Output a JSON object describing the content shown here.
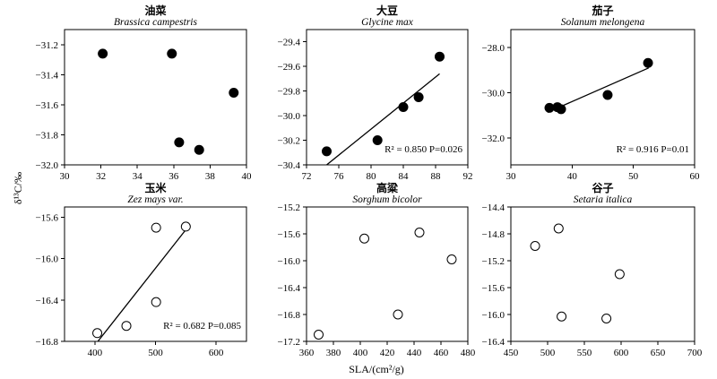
{
  "shared": {
    "xlabel": "SLA/(cm²/g)",
    "ylabel": "δ¹³C/‰"
  },
  "chart_data": [
    {
      "type": "scatter",
      "title": "油菜",
      "subtitle": "Brassica campestris",
      "filled": true,
      "xlim": [
        30,
        40
      ],
      "xticks": [
        30,
        32,
        34,
        36,
        38,
        40
      ],
      "ylim": [
        -32.0,
        -31.1
      ],
      "yticks": [
        -32.0,
        -31.8,
        -31.6,
        -31.4,
        -31.2
      ],
      "ydecimals": 1,
      "points": [
        [
          32.1,
          -31.26
        ],
        [
          35.9,
          -31.26
        ],
        [
          39.3,
          -31.52
        ],
        [
          36.3,
          -31.85
        ],
        [
          37.4,
          -31.9
        ]
      ],
      "fit": null,
      "annotation": ""
    },
    {
      "type": "scatter",
      "title": "大豆",
      "subtitle": "Glycine max",
      "filled": true,
      "xlim": [
        72,
        92
      ],
      "xticks": [
        72,
        76,
        80,
        84,
        88,
        92
      ],
      "ylim": [
        -30.4,
        -29.3
      ],
      "yticks": [
        -30.4,
        -30.2,
        -30.0,
        -29.8,
        -29.6,
        -29.4
      ],
      "ydecimals": 1,
      "points": [
        [
          74.5,
          -30.29
        ],
        [
          80.8,
          -30.2
        ],
        [
          84.0,
          -29.93
        ],
        [
          85.9,
          -29.85
        ],
        [
          88.5,
          -29.52
        ]
      ],
      "fit": [
        [
          74.5,
          -30.4
        ],
        [
          88.5,
          -29.66
        ]
      ],
      "annotation": "R² = 0.850  P=0.026"
    },
    {
      "type": "scatter",
      "title": "茄子",
      "subtitle": "Solanum melongena",
      "filled": true,
      "xlim": [
        30,
        60
      ],
      "xticks": [
        30,
        40,
        50,
        60
      ],
      "ylim": [
        -33.2,
        -27.2
      ],
      "yticks": [
        -32.0,
        -30.0,
        -28.0
      ],
      "ydecimals": 1,
      "points": [
        [
          36.3,
          -30.67
        ],
        [
          37.6,
          -30.64
        ],
        [
          38.2,
          -30.73
        ],
        [
          45.8,
          -30.1
        ],
        [
          52.4,
          -28.68
        ]
      ],
      "fit": [
        [
          36.0,
          -30.87
        ],
        [
          52.5,
          -28.9
        ]
      ],
      "annotation": "R² = 0.916  P=0.01"
    },
    {
      "type": "scatter",
      "title": "玉米",
      "subtitle": "Zez mays var.",
      "filled": false,
      "xlim": [
        350,
        650
      ],
      "xticks": [
        400,
        500,
        600
      ],
      "ylim": [
        -16.8,
        -15.5
      ],
      "yticks": [
        -16.8,
        -16.4,
        -16.0,
        -15.6
      ],
      "ydecimals": 1,
      "points": [
        [
          404,
          -16.72
        ],
        [
          452,
          -16.65
        ],
        [
          501,
          -15.7
        ],
        [
          501,
          -16.42
        ],
        [
          550,
          -15.69
        ]
      ],
      "fit": [
        [
          405,
          -16.8
        ],
        [
          550,
          -15.72
        ]
      ],
      "annotation": "R² = 0.682  P=0.085"
    },
    {
      "type": "scatter",
      "title": "高粱",
      "subtitle": "Sorghum bicolor",
      "filled": false,
      "xlim": [
        360,
        480
      ],
      "xticks": [
        360,
        380,
        400,
        420,
        440,
        460,
        480
      ],
      "ylim": [
        -17.2,
        -15.2
      ],
      "yticks": [
        -17.2,
        -16.8,
        -16.4,
        -16.0,
        -15.6,
        -15.2
      ],
      "ydecimals": 1,
      "points": [
        [
          369,
          -17.1
        ],
        [
          403,
          -15.67
        ],
        [
          428,
          -16.8
        ],
        [
          444,
          -15.58
        ],
        [
          468,
          -15.98
        ]
      ],
      "fit": null,
      "annotation": ""
    },
    {
      "type": "scatter",
      "title": "谷子",
      "subtitle": "Setaria italica",
      "filled": false,
      "xlim": [
        450,
        700
      ],
      "xticks": [
        450,
        500,
        550,
        600,
        650,
        700
      ],
      "ylim": [
        -16.4,
        -14.4
      ],
      "yticks": [
        -16.4,
        -16.0,
        -15.6,
        -15.2,
        -14.8,
        -14.4
      ],
      "ydecimals": 1,
      "points": [
        [
          483,
          -14.98
        ],
        [
          515,
          -14.72
        ],
        [
          519,
          -16.03
        ],
        [
          580,
          -16.06
        ],
        [
          598,
          -15.4
        ]
      ],
      "fit": null,
      "annotation": ""
    }
  ]
}
